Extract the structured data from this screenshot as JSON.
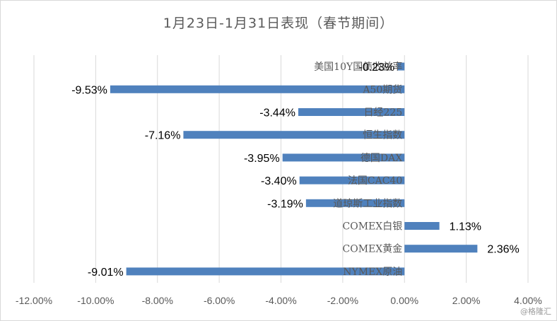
{
  "chart_data": {
    "type": "bar",
    "orientation": "horizontal",
    "title": "1月23日-1月31日表现（春节期间）",
    "categories": [
      "美国10Y国债收益率",
      "A50期货",
      "日经225",
      "恒生指数",
      "德国DAX",
      "法国CAC40",
      "道琼斯工业指数",
      "COMEX白银",
      "COMEX黄金",
      "NYMEX原油"
    ],
    "values": [
      -0.23,
      -9.53,
      -3.44,
      -7.16,
      -3.95,
      -3.4,
      -3.19,
      1.13,
      2.36,
      -9.01
    ],
    "value_labels": [
      "-0.23%",
      "-9.53%",
      "-3.44%",
      "-7.16%",
      "-3.95%",
      "-3.40%",
      "-3.19%",
      "1.13%",
      "2.36%",
      "-9.01%"
    ],
    "x_ticks": [
      "-12.00%",
      "-10.00%",
      "-8.00%",
      "-6.00%",
      "-4.00%",
      "-2.00%",
      "0.00%",
      "2.00%",
      "4.00%"
    ],
    "xlim": [
      -12,
      4
    ],
    "xlabel": "",
    "ylabel": "",
    "grid": "vertical",
    "legend": "none",
    "bar_color": "#4f81bd"
  },
  "watermark": "@格隆汇"
}
